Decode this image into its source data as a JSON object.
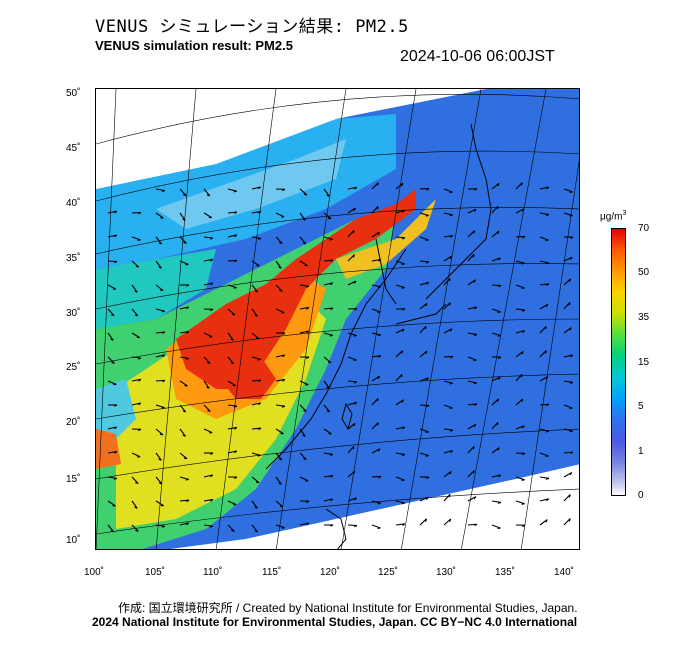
{
  "title_jp": "VENUS シミュレーション結果: PM2.5",
  "title_en": "VENUS simulation result: PM2.5",
  "timestamp": "2024-10-06 06:00JST",
  "lat_labels": [
    "50˚",
    "45˚",
    "40˚",
    "35˚",
    "30˚",
    "25˚",
    "20˚",
    "15˚",
    "10˚"
  ],
  "lon_labels": [
    "100˚",
    "105˚",
    "110˚",
    "115˚",
    "120˚",
    "125˚",
    "130˚",
    "135˚",
    "140˚"
  ],
  "colorbar": {
    "unit": "μg/m",
    "unit_sup": "3",
    "ticks": [
      "70",
      "50",
      "35",
      "15",
      "5",
      "1",
      "0"
    ]
  },
  "credit_line1": "作成: 国立環境研究所 / Created by National Institute for Environmental Studies, Japan.",
  "credit_line2": "2024 National Institute for Environmental Studies, Japan. CC BY−NC 4.0 International"
}
